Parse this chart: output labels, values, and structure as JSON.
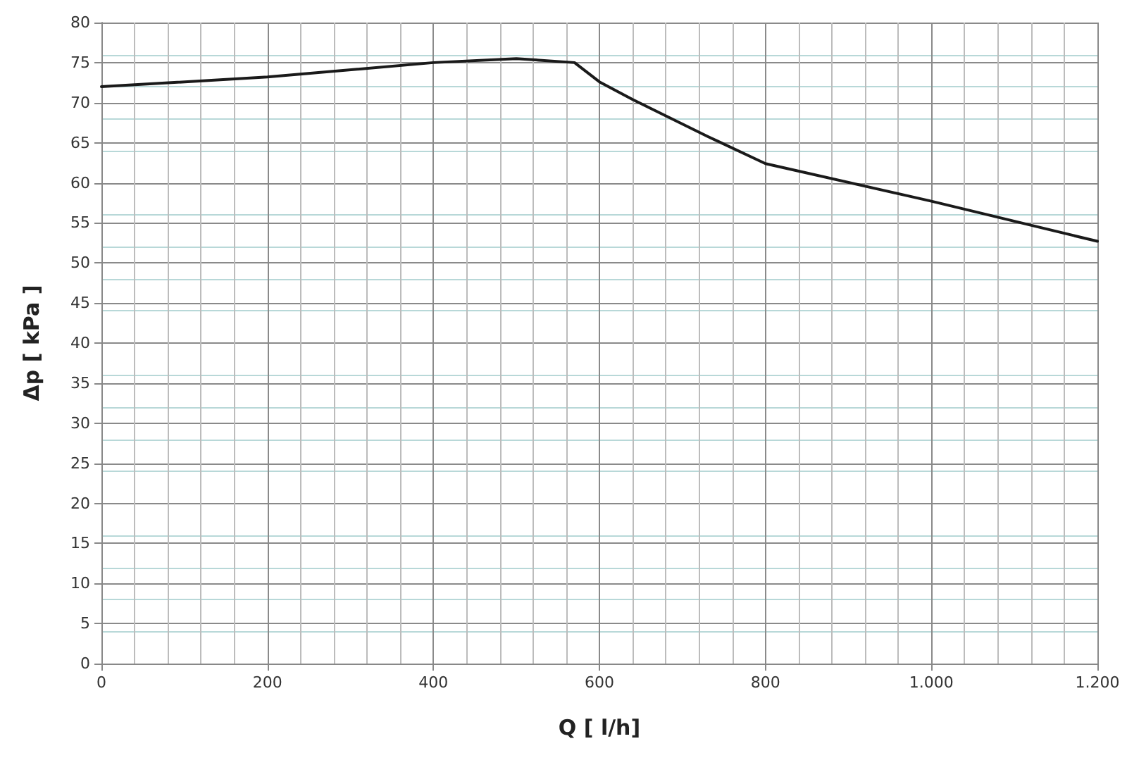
{
  "chart_data": {
    "type": "line",
    "xlabel": "Q [ l/h]",
    "ylabel": "Δp [ kPa ]",
    "x": [
      0,
      200,
      400,
      500,
      570,
      600,
      640,
      730,
      800,
      1000,
      1200
    ],
    "series": [
      {
        "color": "#1a1a1a",
        "values": [
          72,
          73.2,
          75,
          75.5,
          75,
          72.6,
          70.4,
          65.8,
          62.4,
          57.7,
          52.7
        ]
      }
    ],
    "xlim": [
      0,
      1200
    ],
    "xticks": [
      0,
      200,
      400,
      600,
      800,
      {
        "value": 1000,
        "label": "1.000"
      },
      {
        "value": 1200,
        "label": "1.200"
      }
    ],
    "ylim": [
      0,
      80
    ],
    "yticks": [
      0,
      5,
      10,
      15,
      20,
      25,
      30,
      35,
      40,
      45,
      50,
      55,
      60,
      65,
      70,
      75,
      80
    ],
    "grid": true,
    "marker": "none",
    "line_style": "solid"
  }
}
